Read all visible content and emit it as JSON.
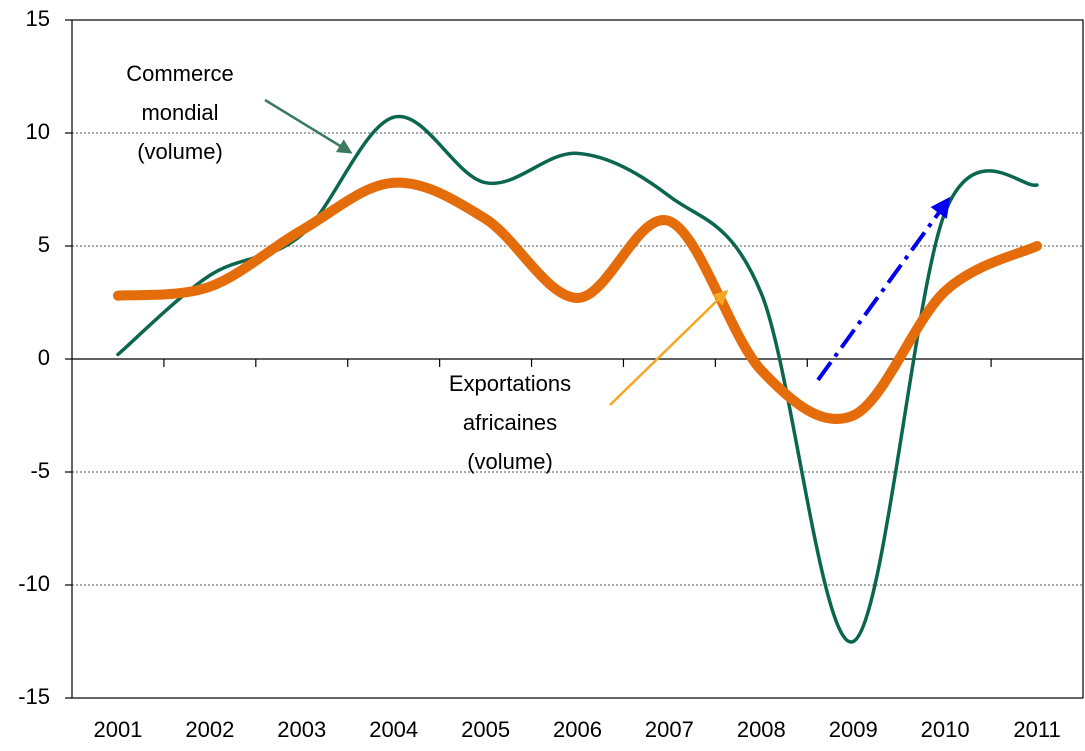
{
  "chart_data": {
    "type": "line",
    "categories": [
      "2001",
      "2002",
      "2003",
      "2004",
      "2005",
      "2006",
      "2007",
      "2008",
      "2009",
      "2010",
      "2011"
    ],
    "series": [
      {
        "name": "Commerce mondial (volume)",
        "color": "#0b6650",
        "values": [
          0.2,
          3.7,
          5.5,
          10.7,
          7.8,
          9.1,
          7.2,
          2.9,
          -12.5,
          6.5,
          7.7
        ]
      },
      {
        "name": "Exportations africaines (volume)",
        "color": "#e46c0a",
        "values": [
          2.8,
          3.2,
          5.7,
          7.8,
          6.2,
          2.7,
          6.1,
          -0.5,
          -2.5,
          3.0,
          5.0
        ]
      }
    ],
    "annotations": [
      {
        "lines": [
          "Commerce",
          "mondial",
          "(volume)"
        ]
      },
      {
        "lines": [
          "Exportations",
          "africaines",
          "(volume)"
        ]
      }
    ],
    "ylim": [
      -15,
      15
    ],
    "yticks": [
      -15,
      -10,
      -5,
      0,
      5,
      10,
      15
    ],
    "grid": true
  }
}
